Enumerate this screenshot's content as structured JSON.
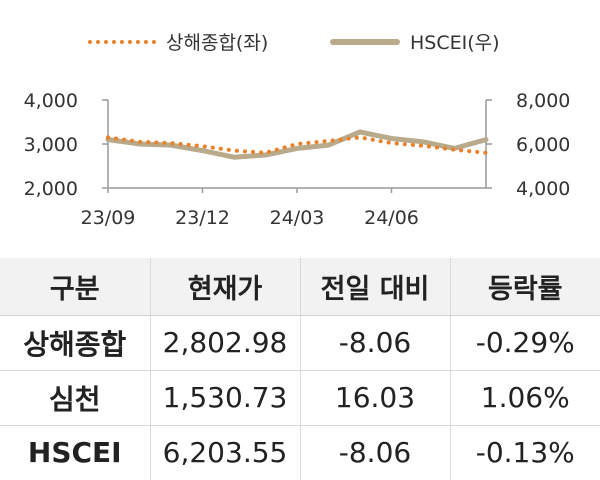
{
  "chart_data": {
    "type": "line",
    "legend": [
      {
        "name": "상해종합(좌)",
        "color": "#e8822a",
        "style": "dotted"
      },
      {
        "name": "HSCEI(우)",
        "color": "#b8aa8a",
        "style": "solid"
      }
    ],
    "x_ticks": [
      "23/09",
      "23/12",
      "24/03",
      "24/06"
    ],
    "y_left": {
      "ticks": [
        "4,000",
        "3,000",
        "2,000"
      ],
      "lim": [
        2000,
        4000
      ]
    },
    "y_right": {
      "ticks": [
        "8,000",
        "6,000",
        "4,000"
      ],
      "lim": [
        4000,
        8000
      ]
    },
    "x": [
      "23/09",
      "23/10",
      "23/11",
      "23/12",
      "24/01",
      "24/02",
      "24/03",
      "24/04",
      "24/05",
      "24/06",
      "24/07",
      "24/08",
      "24/09"
    ],
    "series": [
      {
        "name": "상해종합(좌)",
        "axis": "left",
        "values": [
          3150,
          3050,
          3020,
          2950,
          2850,
          2800,
          3000,
          3070,
          3150,
          3020,
          2960,
          2870,
          2800
        ]
      },
      {
        "name": "HSCEI(우)",
        "axis": "right",
        "values": [
          6200,
          6000,
          5950,
          5700,
          5400,
          5500,
          5800,
          5950,
          6550,
          6250,
          6100,
          5800,
          6200
        ]
      }
    ]
  },
  "table": {
    "headers": [
      "구분",
      "현재가",
      "전일 대비",
      "등락률"
    ],
    "rows": [
      [
        "상해종합",
        "2,802.98",
        "-8.06",
        "-0.29%"
      ],
      [
        "심천",
        "1,530.73",
        "16.03",
        "1.06%"
      ],
      [
        "HSCEI",
        "6,203.55",
        "-8.06",
        "-0.13%"
      ]
    ]
  }
}
